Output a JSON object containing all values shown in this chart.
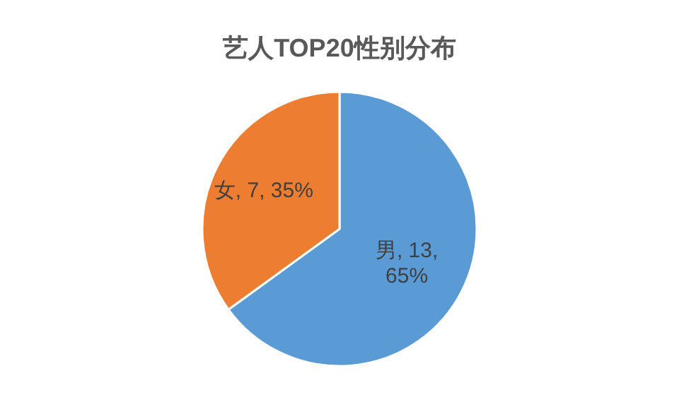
{
  "chart_data": {
    "type": "pie",
    "title": "艺人TOP20性别分布",
    "categories": [
      "男",
      "女"
    ],
    "values": [
      13,
      7
    ],
    "colors": [
      "#5b9bd5",
      "#ed7d31"
    ],
    "value_labels": [
      "13, 65%",
      "7, 35%"
    ]
  }
}
